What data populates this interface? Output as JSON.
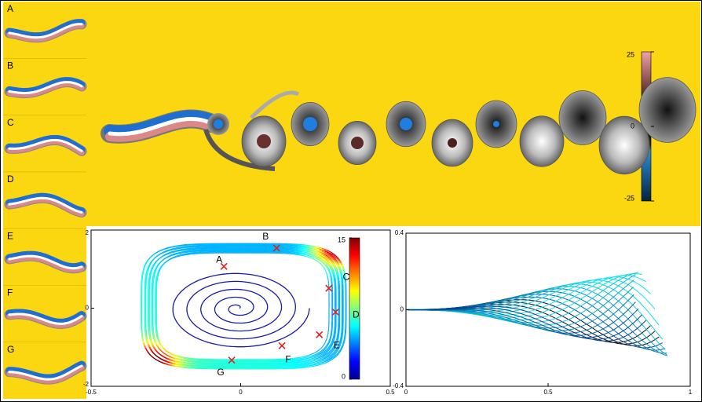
{
  "side_panels": {
    "labels": [
      "A",
      "B",
      "C",
      "D",
      "E",
      "F",
      "G"
    ]
  },
  "vorticity_colorbar": {
    "lim": [
      -25,
      25
    ],
    "ticks": [
      25,
      0,
      -25
    ]
  },
  "phase_plot": {
    "xlim": [
      -0.5,
      0.5
    ],
    "ylim": [
      -2,
      2
    ],
    "xticks": [
      -0.5,
      0,
      0.5
    ],
    "yticks": [
      -2,
      0,
      2
    ],
    "points": [
      {
        "label": "A",
        "x": -0.056,
        "y": 1.07
      },
      {
        "label": "B",
        "x": 0.12,
        "y": 1.54
      },
      {
        "label": "C",
        "x": 0.295,
        "y": 0.51
      },
      {
        "label": "D",
        "x": 0.317,
        "y": -0.1
      },
      {
        "label": "E",
        "x": 0.263,
        "y": -0.68
      },
      {
        "label": "F",
        "x": 0.138,
        "y": -0.96
      },
      {
        "label": "G",
        "x": -0.03,
        "y": -1.33
      }
    ],
    "colorbar": {
      "lim": [
        0,
        15
      ],
      "ticks": [
        15,
        0
      ]
    }
  },
  "midline_plot": {
    "xlim": [
      0,
      1
    ],
    "ylim": [
      -0.4,
      0.4
    ],
    "xticks": [
      0,
      0.5,
      1
    ],
    "yticks": [
      0.4,
      0,
      -0.4
    ]
  }
}
